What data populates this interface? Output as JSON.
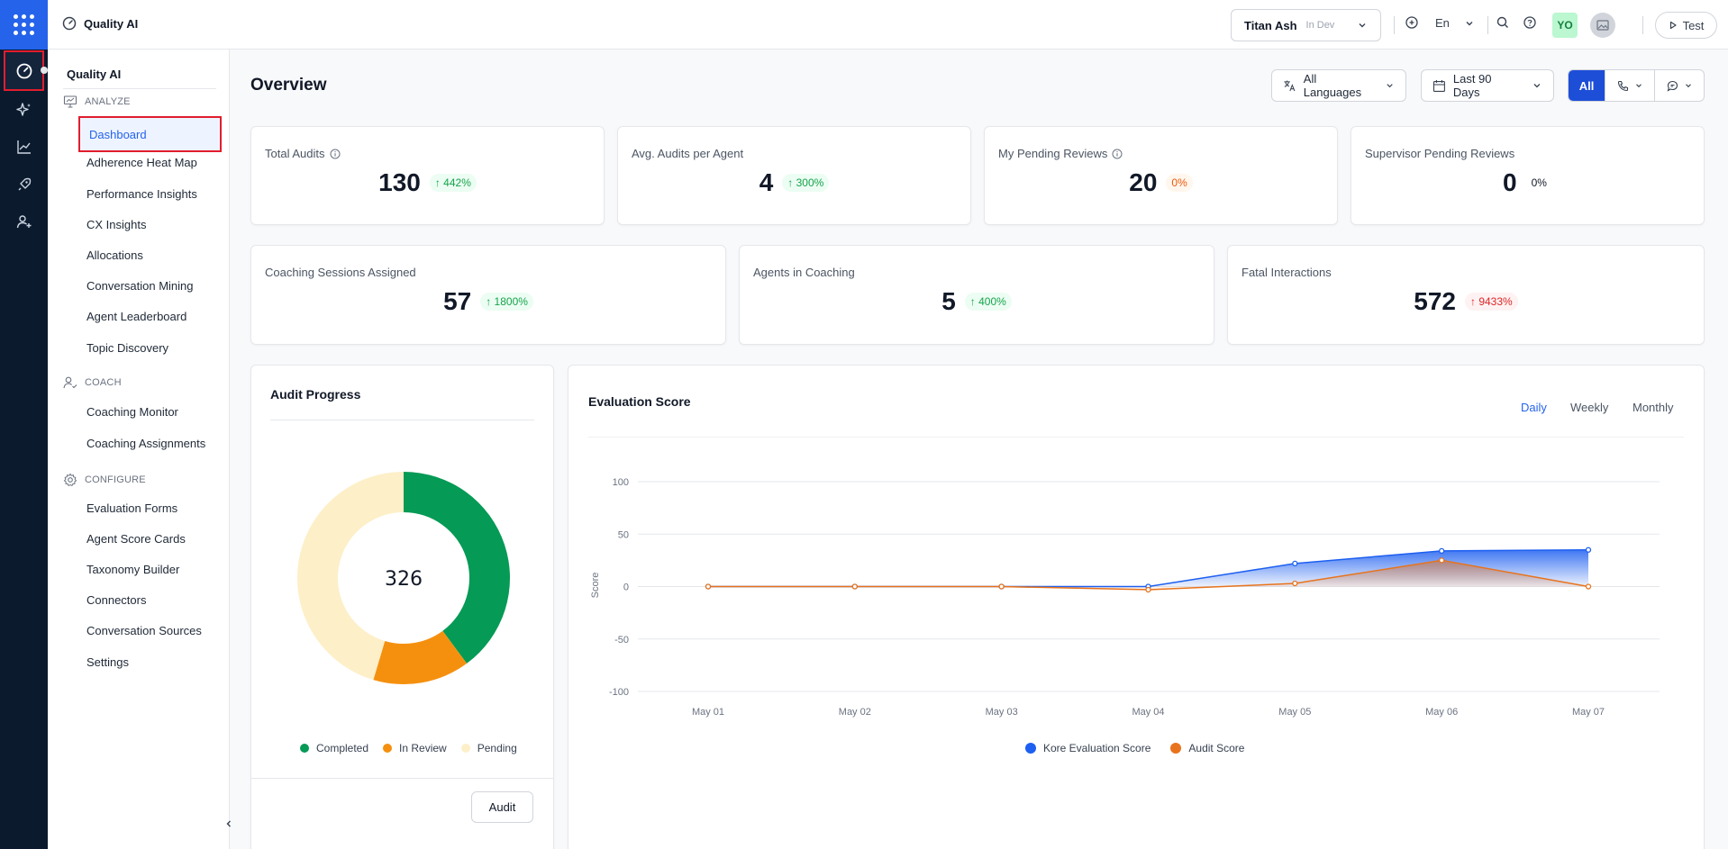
{
  "app": {
    "title": "Quality AI"
  },
  "topbar": {
    "workspace": "Titan Ash",
    "environment": "In Dev",
    "language": "En",
    "avatar_initials": "YO",
    "test_label": "Test"
  },
  "sidebar": {
    "title": "Quality AI",
    "groups": [
      {
        "label": "ANALYZE",
        "items": [
          "Dashboard",
          "Adherence Heat Map",
          "Performance Insights",
          "CX Insights",
          "Allocations",
          "Conversation Mining",
          "Agent Leaderboard",
          "Topic Discovery"
        ]
      },
      {
        "label": "COACH",
        "items": [
          "Coaching Monitor",
          "Coaching Assignments"
        ]
      },
      {
        "label": "CONFIGURE",
        "items": [
          "Evaluation Forms",
          "Agent Score Cards",
          "Taxonomy Builder",
          "Connectors",
          "Conversation Sources",
          "Settings"
        ]
      }
    ],
    "active_item": "Dashboard"
  },
  "main": {
    "title": "Overview",
    "filters": {
      "languages": "All Languages",
      "date_range": "Last 90 Days",
      "channel_all": "All"
    },
    "stats_row1": [
      {
        "label": "Total Audits",
        "value": "130",
        "delta": "↑ 442%",
        "info": true
      },
      {
        "label": "Avg. Audits per Agent",
        "value": "4",
        "delta": "↑ 300%",
        "info": false
      },
      {
        "label": "My Pending Reviews",
        "value": "20",
        "delta": "0%",
        "info": true
      },
      {
        "label": "Supervisor Pending Reviews",
        "value": "0",
        "delta": "0%",
        "info": false
      }
    ],
    "stats_row2": [
      {
        "label": "Coaching Sessions Assigned",
        "value": "57",
        "delta": "↑ 1800%"
      },
      {
        "label": "Agents in Coaching",
        "value": "5",
        "delta": "↑ 400%"
      },
      {
        "label": "Fatal Interactions",
        "value": "572",
        "delta": "↑ 9433%"
      }
    ],
    "audit_progress": {
      "title": "Audit Progress",
      "total": "326",
      "legend": [
        "Completed",
        "In Review",
        "Pending"
      ],
      "button": "Audit"
    },
    "evaluation": {
      "title": "Evaluation Score",
      "tabs": [
        "Daily",
        "Weekly",
        "Monthly"
      ],
      "active_tab": "Daily"
    }
  },
  "colors": {
    "accent": "#2563eb",
    "completed": "#059a55",
    "in_review": "#f5900f",
    "pending": "#fdefc8",
    "kore": "#1d5ff0",
    "audit": "#e8731c"
  },
  "chart_data": [
    {
      "type": "pie",
      "title": "Audit Progress",
      "labels": [
        "Completed",
        "In Review",
        "Pending"
      ],
      "values": [
        130,
        48,
        148
      ],
      "center_label": "326"
    },
    {
      "type": "area",
      "title": "Evaluation Score",
      "x": [
        "May 01",
        "May 02",
        "May 03",
        "May 04",
        "May 05",
        "May 06",
        "May 07"
      ],
      "series": [
        {
          "name": "Kore Evaluation Score",
          "values": [
            0,
            0,
            0,
            0,
            22,
            34,
            35
          ]
        },
        {
          "name": "Audit Score",
          "values": [
            0,
            0,
            0,
            -3,
            3,
            25,
            0
          ]
        }
      ],
      "ylabel": "Score",
      "ylim": [
        -100,
        100
      ],
      "yticks": [
        100,
        50,
        0,
        -50,
        -100
      ],
      "grid": true,
      "legend": "bottom"
    }
  ]
}
